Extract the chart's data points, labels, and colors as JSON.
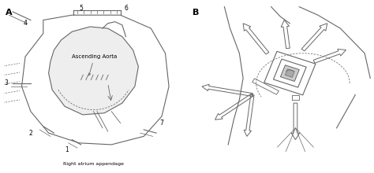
{
  "bg_color": "#ffffff",
  "line_color": "#666666",
  "text_color": "#000000",
  "fig_width": 4.74,
  "fig_height": 2.2,
  "dpi": 100,
  "label_A": "A",
  "label_B": "B",
  "ascending_aorta_label": "Ascending Aorta",
  "right_atrium_label": "Right atrium appendage"
}
